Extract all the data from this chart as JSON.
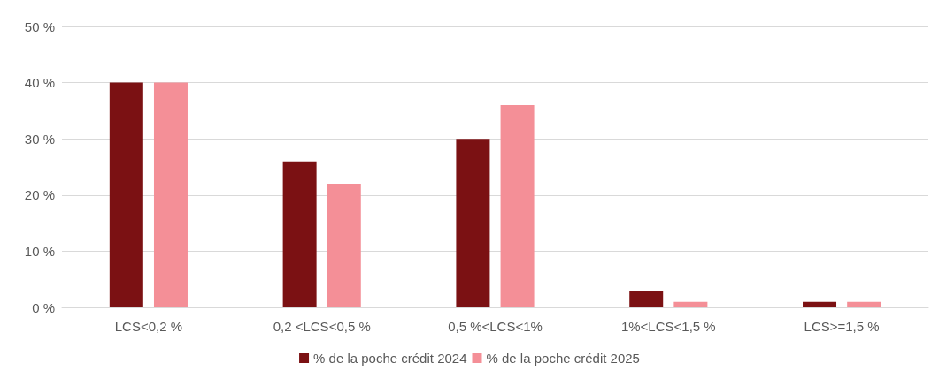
{
  "chart_data": {
    "type": "bar",
    "categories": [
      "LCS<0,2 %",
      "0,2 <LCS<0,5 %",
      "0,5 %<LCS<1%",
      "1%<LCS<1,5 %",
      "LCS>=1,5 %"
    ],
    "series": [
      {
        "name": "% de la poche crédit 2024",
        "color": "#7b1113",
        "values": [
          40,
          26,
          30,
          3,
          1
        ]
      },
      {
        "name": "% de la poche crédit 2025",
        "color": "#f48f97",
        "values": [
          40,
          22,
          36,
          1,
          1
        ]
      }
    ],
    "ylim": [
      0,
      50
    ],
    "yticks": [
      {
        "value": 0,
        "label": "0 %"
      },
      {
        "value": 10,
        "label": "10 %"
      },
      {
        "value": 20,
        "label": "20 %"
      },
      {
        "value": 30,
        "label": "30 %"
      },
      {
        "value": 40,
        "label": "40 %"
      },
      {
        "value": 50,
        "label": "50 %"
      }
    ],
    "grid": "y",
    "legend": "bottom"
  }
}
